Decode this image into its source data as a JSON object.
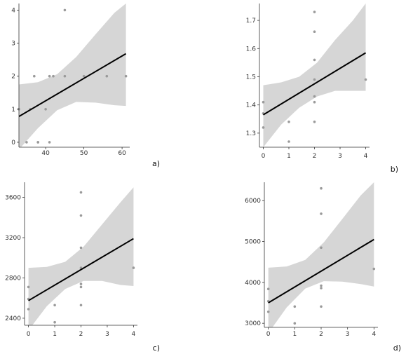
{
  "colors": {
    "band": "#d6d6d6",
    "line": "#000000",
    "point": "#9a9a9a",
    "axis": "#333333"
  },
  "chart_data": [
    {
      "panel_label": "a)",
      "type": "scatter",
      "xlim": [
        33,
        62
      ],
      "ylim": [
        -0.15,
        4.2
      ],
      "xticks": [
        40,
        50,
        60
      ],
      "yticks": [
        0,
        1,
        2,
        3,
        4
      ],
      "points": [
        {
          "x": 33,
          "y": 1
        },
        {
          "x": 35,
          "y": 0
        },
        {
          "x": 36,
          "y": 1
        },
        {
          "x": 37,
          "y": 2
        },
        {
          "x": 38,
          "y": 0
        },
        {
          "x": 38,
          "y": 0
        },
        {
          "x": 40,
          "y": 1
        },
        {
          "x": 41,
          "y": 0
        },
        {
          "x": 41,
          "y": 2
        },
        {
          "x": 42,
          "y": 2
        },
        {
          "x": 45,
          "y": 4
        },
        {
          "x": 45,
          "y": 2
        },
        {
          "x": 50,
          "y": 2
        },
        {
          "x": 56,
          "y": 2
        },
        {
          "x": 61,
          "y": 2
        }
      ],
      "fit": {
        "x": [
          33,
          61
        ],
        "y": [
          0.78,
          2.68
        ]
      },
      "band": [
        {
          "x": 33,
          "lo": -0.22,
          "hi": 1.75
        },
        {
          "x": 38,
          "lo": 0.43,
          "hi": 1.82
        },
        {
          "x": 43,
          "lo": 0.97,
          "hi": 2.06
        },
        {
          "x": 48,
          "lo": 1.22,
          "hi": 2.58
        },
        {
          "x": 53,
          "lo": 1.2,
          "hi": 3.26
        },
        {
          "x": 58,
          "lo": 1.12,
          "hi": 3.92
        },
        {
          "x": 61,
          "lo": 1.1,
          "hi": 4.2
        }
      ]
    },
    {
      "panel_label": "b)",
      "type": "scatter",
      "xlim": [
        -0.15,
        4.15
      ],
      "ylim": [
        1.25,
        1.76
      ],
      "xticks": [
        0,
        1,
        2,
        3,
        4
      ],
      "yticks": [
        1.3,
        1.4,
        1.5,
        1.6,
        1.7
      ],
      "points": [
        {
          "x": 0,
          "y": 1.32
        },
        {
          "x": 0,
          "y": 1.37
        },
        {
          "x": 0,
          "y": 1.41
        },
        {
          "x": 1,
          "y": 1.27
        },
        {
          "x": 1,
          "y": 1.34
        },
        {
          "x": 2,
          "y": 1.34
        },
        {
          "x": 2,
          "y": 1.41
        },
        {
          "x": 2,
          "y": 1.43
        },
        {
          "x": 2,
          "y": 1.49
        },
        {
          "x": 2,
          "y": 1.56
        },
        {
          "x": 2,
          "y": 1.66
        },
        {
          "x": 2,
          "y": 1.73
        },
        {
          "x": 4,
          "y": 1.49
        }
      ],
      "fit": {
        "x": [
          0,
          4
        ],
        "y": [
          1.365,
          1.585
        ]
      },
      "band": [
        {
          "x": 0,
          "lo": 1.25,
          "hi": 1.47
        },
        {
          "x": 0.7,
          "lo": 1.33,
          "hi": 1.48
        },
        {
          "x": 1.4,
          "lo": 1.39,
          "hi": 1.5
        },
        {
          "x": 2.1,
          "lo": 1.43,
          "hi": 1.55
        },
        {
          "x": 2.8,
          "lo": 1.45,
          "hi": 1.63
        },
        {
          "x": 3.5,
          "lo": 1.45,
          "hi": 1.7
        },
        {
          "x": 4,
          "lo": 1.45,
          "hi": 1.76
        }
      ]
    },
    {
      "panel_label": "c)",
      "type": "scatter",
      "xlim": [
        -0.15,
        4.15
      ],
      "ylim": [
        2330,
        3750
      ],
      "xticks": [
        0,
        1,
        2,
        3,
        4
      ],
      "yticks": [
        2400,
        2800,
        3200,
        3600
      ],
      "yticklabels": [
        "2400",
        "2800",
        "3200",
        "3600"
      ],
      "points": [
        {
          "x": 0,
          "y": 2490
        },
        {
          "x": 0,
          "y": 2590
        },
        {
          "x": 0,
          "y": 2710
        },
        {
          "x": 1,
          "y": 2360
        },
        {
          "x": 1,
          "y": 2530
        },
        {
          "x": 2,
          "y": 2530
        },
        {
          "x": 2,
          "y": 2710
        },
        {
          "x": 2,
          "y": 2740
        },
        {
          "x": 2,
          "y": 2900
        },
        {
          "x": 2,
          "y": 3100
        },
        {
          "x": 2,
          "y": 3420
        },
        {
          "x": 2,
          "y": 3650
        },
        {
          "x": 4,
          "y": 2900
        }
      ],
      "fit": {
        "x": [
          0,
          4
        ],
        "y": [
          2575,
          3190
        ]
      },
      "band": [
        {
          "x": 0,
          "lo": 2280,
          "hi": 2900
        },
        {
          "x": 0.7,
          "lo": 2520,
          "hi": 2910
        },
        {
          "x": 1.4,
          "lo": 2690,
          "hi": 2960
        },
        {
          "x": 2.1,
          "lo": 2770,
          "hi": 3110
        },
        {
          "x": 2.8,
          "lo": 2770,
          "hi": 3330
        },
        {
          "x": 3.5,
          "lo": 2730,
          "hi": 3550
        },
        {
          "x": 4,
          "lo": 2720,
          "hi": 3700
        }
      ]
    },
    {
      "panel_label": "d)",
      "type": "scatter",
      "xlim": [
        -0.15,
        4.15
      ],
      "ylim": [
        2900,
        6450
      ],
      "xticks": [
        0,
        1,
        2,
        3,
        4
      ],
      "yticks": [
        3000,
        4000,
        5000,
        6000
      ],
      "points": [
        {
          "x": 0,
          "y": 3280
        },
        {
          "x": 0,
          "y": 3540
        },
        {
          "x": 0,
          "y": 3840
        },
        {
          "x": 1,
          "y": 3000
        },
        {
          "x": 1,
          "y": 3410
        },
        {
          "x": 2,
          "y": 3410
        },
        {
          "x": 2,
          "y": 3860
        },
        {
          "x": 2,
          "y": 3920
        },
        {
          "x": 2,
          "y": 4850
        },
        {
          "x": 2,
          "y": 5680
        },
        {
          "x": 2,
          "y": 6300
        },
        {
          "x": 4,
          "y": 4330
        }
      ],
      "fit": {
        "x": [
          0,
          4
        ],
        "y": [
          3500,
          5050
        ]
      },
      "band": [
        {
          "x": 0,
          "lo": 2760,
          "hi": 4360
        },
        {
          "x": 0.7,
          "lo": 3390,
          "hi": 4390
        },
        {
          "x": 1.4,
          "lo": 3850,
          "hi": 4550
        },
        {
          "x": 2.1,
          "lo": 4030,
          "hi": 4980
        },
        {
          "x": 2.8,
          "lo": 4020,
          "hi": 5550
        },
        {
          "x": 3.5,
          "lo": 3960,
          "hi": 6130
        },
        {
          "x": 4,
          "lo": 3900,
          "hi": 6450
        }
      ]
    }
  ]
}
